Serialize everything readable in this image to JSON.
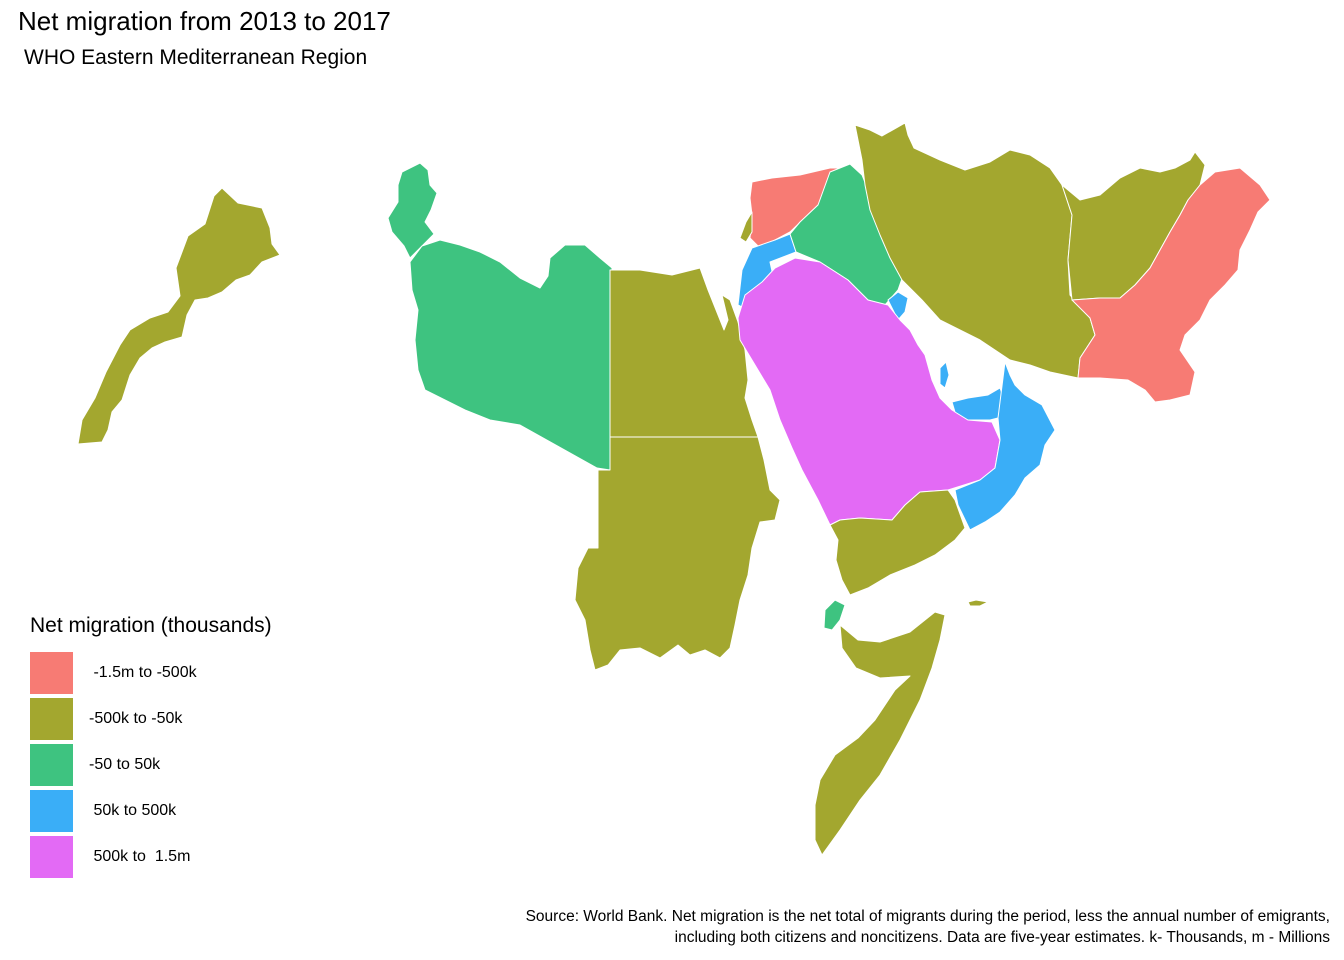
{
  "title": "Net migration from 2013 to 2017",
  "subtitle": "WHO Eastern Mediterranean Region",
  "legend": {
    "title": "Net migration (thousands)",
    "items": [
      {
        "key": "c1",
        "label": " -1.5m to -500k",
        "color": "#f77b74"
      },
      {
        "key": "c2",
        "label": "-500k to -50k",
        "color": "#a3a72f"
      },
      {
        "key": "c3",
        "label": "-50 to 50k",
        "color": "#3ec380"
      },
      {
        "key": "c4",
        "label": " 50k to 500k",
        "color": "#3aaef7"
      },
      {
        "key": "c5",
        "label": " 500k to  1.5m",
        "color": "#e36af5"
      }
    ]
  },
  "regions": [
    {
      "name": "morocco",
      "category": "c2"
    },
    {
      "name": "tunisia",
      "category": "c3"
    },
    {
      "name": "libya",
      "category": "c3"
    },
    {
      "name": "egypt",
      "category": "c2"
    },
    {
      "name": "sudan",
      "category": "c2"
    },
    {
      "name": "syria",
      "category": "c1"
    },
    {
      "name": "lebanon",
      "category": "c2"
    },
    {
      "name": "jordan",
      "category": "c4"
    },
    {
      "name": "iraq",
      "category": "c3"
    },
    {
      "name": "kuwait",
      "category": "c4"
    },
    {
      "name": "saudi-arabia",
      "category": "c5"
    },
    {
      "name": "qatar",
      "category": "c4"
    },
    {
      "name": "uae",
      "category": "c4"
    },
    {
      "name": "oman",
      "category": "c4"
    },
    {
      "name": "yemen",
      "category": "c2"
    },
    {
      "name": "djibouti",
      "category": "c3"
    },
    {
      "name": "somalia",
      "category": "c2"
    },
    {
      "name": "iran",
      "category": "c2"
    },
    {
      "name": "afghanistan",
      "category": "c2"
    },
    {
      "name": "pakistan",
      "category": "c1"
    },
    {
      "name": "socotra",
      "category": "c2"
    }
  ],
  "source": {
    "line1": "Source: World Bank. Net migration is the net total of migrants during the period, less the annual number of emigrants,",
    "line2": "including both citizens and noncitizens. Data are five-year estimates. k- Thousands, m - Millions"
  }
}
